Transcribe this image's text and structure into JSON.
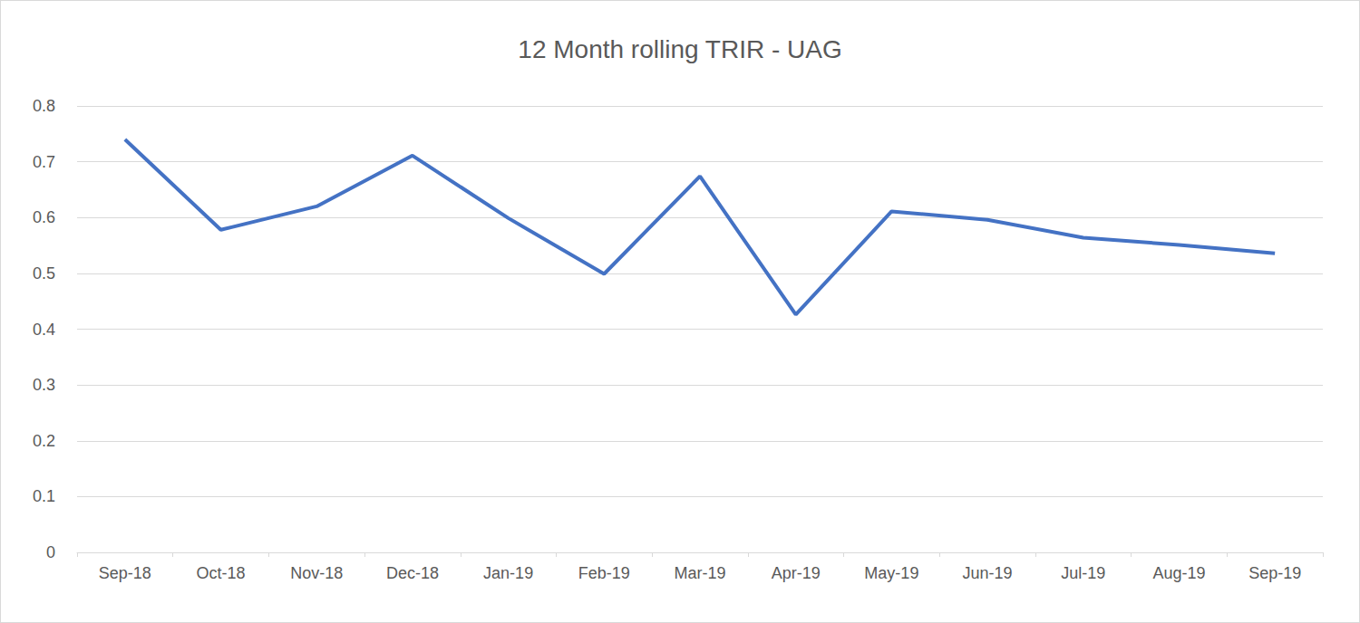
{
  "chart_data": {
    "type": "line",
    "title": "12 Month rolling TRIR - UAG",
    "categories": [
      "Sep-18",
      "Oct-18",
      "Nov-18",
      "Dec-18",
      "Jan-19",
      "Feb-19",
      "Mar-19",
      "Apr-19",
      "May-19",
      "Jun-19",
      "Jul-19",
      "Aug-19",
      "Sep-19"
    ],
    "values": [
      0.74,
      0.578,
      0.62,
      0.711,
      0.599,
      0.499,
      0.674,
      0.426,
      0.611,
      0.596,
      0.564,
      0.551,
      0.536
    ],
    "color": "#4472c4",
    "ylim": [
      0,
      0.8
    ],
    "yticks": [
      0,
      0.1,
      0.2,
      0.3,
      0.4,
      0.5,
      0.6,
      0.7,
      0.8
    ],
    "grid": true
  }
}
